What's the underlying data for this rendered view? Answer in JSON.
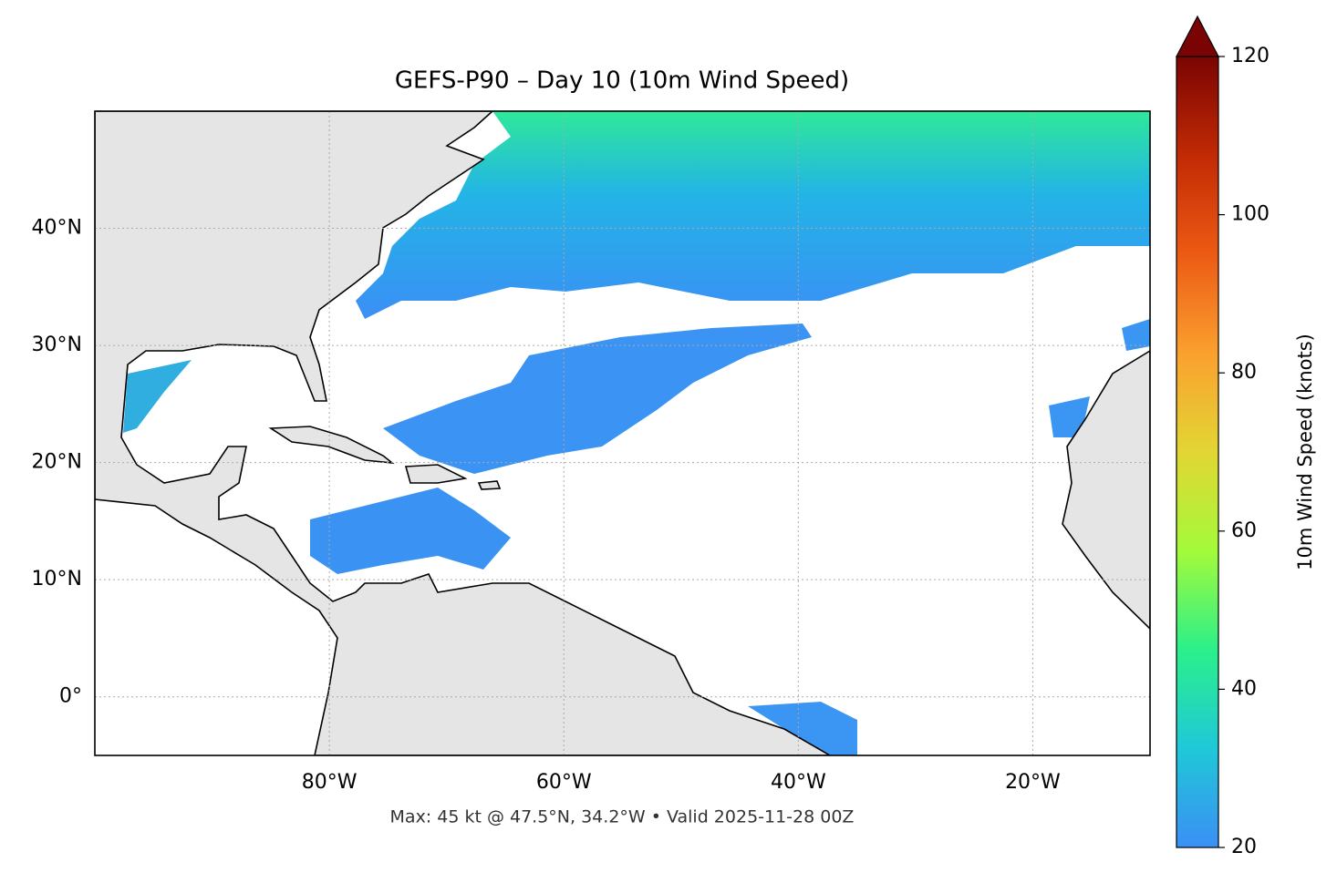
{
  "chart_data": {
    "type": "map",
    "title": "GEFS-P90 – Day 10 (10m Wind Speed)",
    "footer": "Max: 45 kt @ 47.5°N, 34.2°W • Valid 2025-11-28 00Z",
    "xlim": [
      -100,
      -10
    ],
    "ylim": [
      -5,
      50
    ],
    "xticks": [
      {
        "value": -80,
        "label": "80°W"
      },
      {
        "value": -60,
        "label": "60°W"
      },
      {
        "value": -40,
        "label": "40°W"
      },
      {
        "value": -20,
        "label": "20°W"
      }
    ],
    "yticks": [
      {
        "value": 0,
        "label": "0°"
      },
      {
        "value": 10,
        "label": "10°N"
      },
      {
        "value": 20,
        "label": "20°N"
      },
      {
        "value": 30,
        "label": "30°N"
      },
      {
        "value": 40,
        "label": "40°N"
      }
    ],
    "grid": true,
    "colorbar": {
      "label": "10m Wind Speed (knots)",
      "lim": [
        20,
        120
      ],
      "ticks": [
        20,
        40,
        60,
        80,
        100,
        120
      ],
      "colors": [
        "#3b8ff5",
        "#1fc8d8",
        "#2bf08a",
        "#a4fa3a",
        "#e2d634",
        "#fba02f",
        "#ec5a14",
        "#c12a04",
        "#7a0403"
      ]
    }
  }
}
